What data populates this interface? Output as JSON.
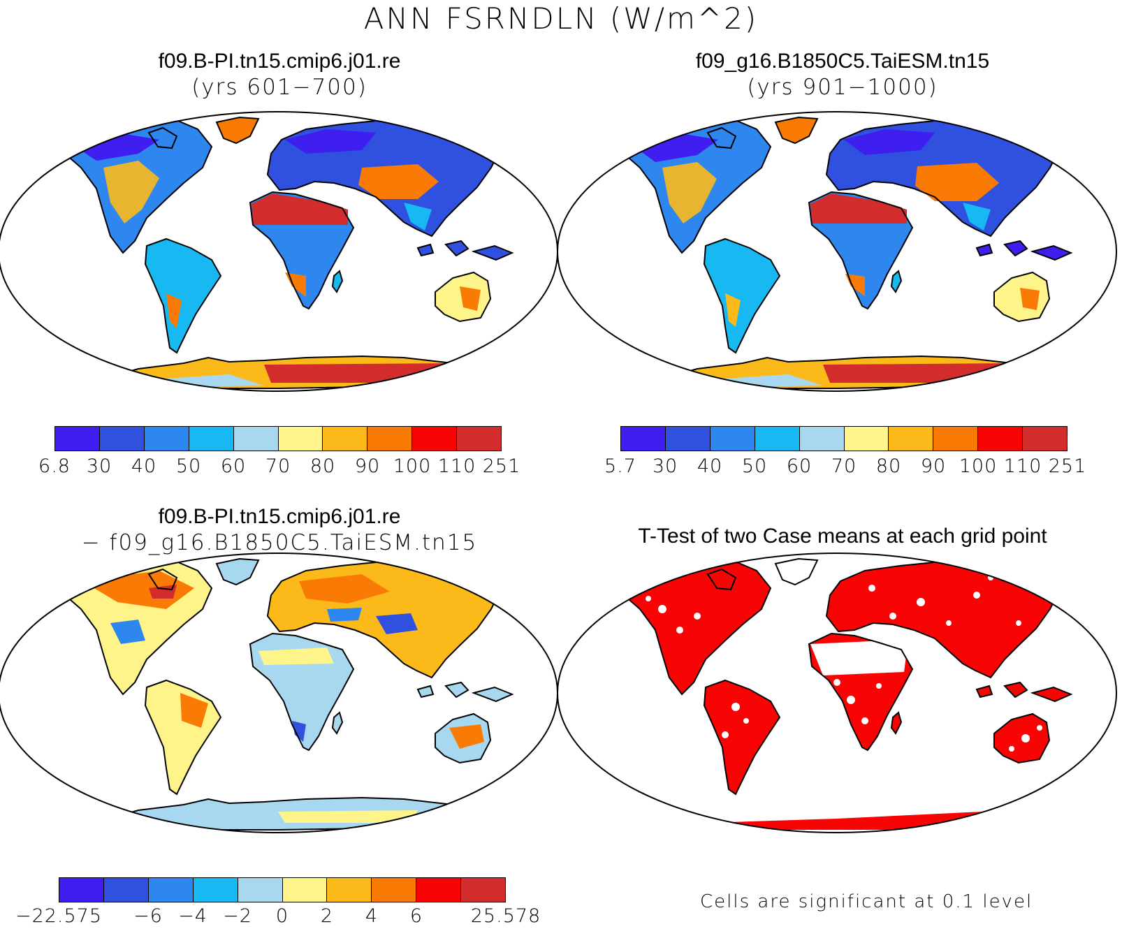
{
  "title": "ANN FSRNDLN (W/m^2)",
  "colors": {
    "bins": [
      "#3f1ef0",
      "#3050e0",
      "#2e86ef",
      "#18b8f2",
      "#a8d8f0",
      "#fef48a",
      "#fcba1a",
      "#f97b06",
      "#f80404",
      "#d32c2c"
    ],
    "significant": "#f80404",
    "land_outline": "#000000"
  },
  "panels": {
    "case1": {
      "title_line1": "f09.B-PI.tn15.cmip6.j01.re",
      "title_line2": "(yrs 601−700)",
      "colorbar_labels": [
        "6.8",
        "30",
        "40",
        "50",
        "60",
        "70",
        "80",
        "90",
        "100",
        "110",
        "251"
      ]
    },
    "case2": {
      "title_line1": "f09_g16.B1850C5.TaiESM.tn15",
      "title_line2": "(yrs 901−1000)",
      "colorbar_labels": [
        "5.7",
        "30",
        "40",
        "50",
        "60",
        "70",
        "80",
        "90",
        "100",
        "110",
        "251"
      ]
    },
    "diff": {
      "title_line1": "f09.B-PI.tn15.cmip6.j01.re",
      "title_line2": "− f09_g16.B1850C5.TaiESM.tn15",
      "colorbar_labels": [
        "−22.575",
        "−6",
        "−4",
        "−2",
        "0",
        "2",
        "4",
        "6",
        "25.578"
      ]
    },
    "ttest": {
      "title": "T-Test of two Case means at each grid point",
      "footnote": "Cells are significant at 0.1 level"
    }
  }
}
